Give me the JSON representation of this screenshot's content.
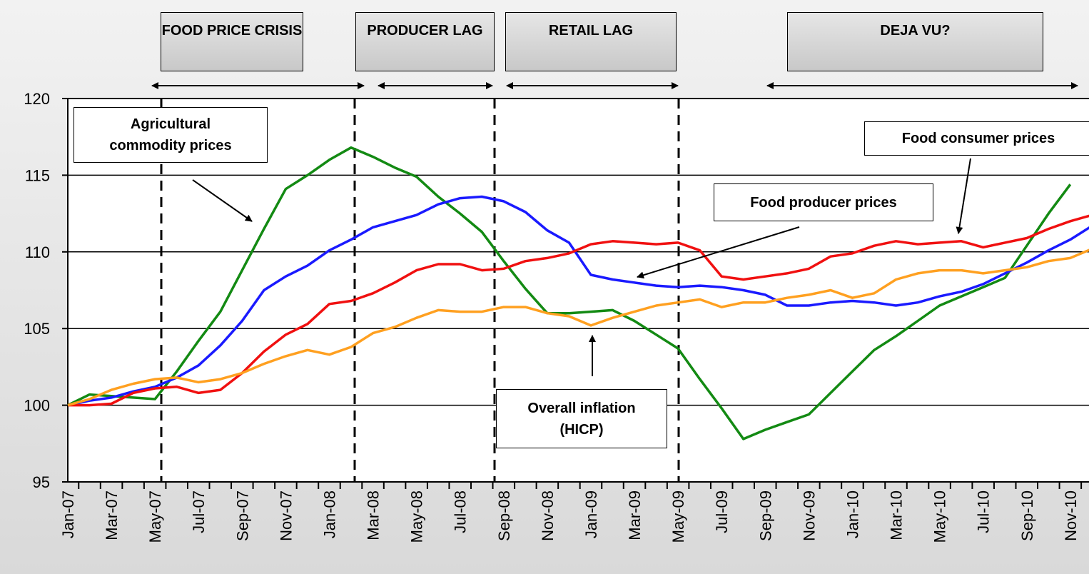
{
  "chart_data": {
    "type": "line",
    "categories": [
      "Jan-07",
      null,
      "Mar-07",
      null,
      "May-07",
      null,
      "Jul-07",
      null,
      "Sep-07",
      null,
      "Nov-07",
      null,
      "Jan-08",
      null,
      "Mar-08",
      null,
      "May-08",
      null,
      "Jul-08",
      null,
      "Sep-08",
      null,
      "Nov-08",
      null,
      "Jan-09",
      null,
      "Mar-09",
      null,
      "May-09",
      null,
      "Jul-09",
      null,
      "Sep-09",
      null,
      "Nov-09",
      null,
      "Jan-10",
      null,
      "Mar-10",
      null,
      "May-10",
      null,
      "Jul-10",
      null,
      "Sep-10",
      null,
      "Nov-10",
      null
    ],
    "series": [
      {
        "name": "Agricultural commodity prices",
        "color": "#138a13",
        "values": [
          100,
          100.7,
          100.6,
          100.5,
          100.4,
          102.2,
          104.2,
          106.1,
          108.8,
          111.5,
          114.1,
          115.0,
          116.0,
          116.8,
          116.2,
          115.5,
          114.9,
          113.6,
          112.5,
          111.3,
          109.4,
          107.6,
          106.0,
          106.0,
          106.1,
          106.2,
          105.5,
          104.6,
          103.7,
          101.7,
          99.8,
          97.8,
          98.4,
          98.9,
          99.4,
          100.8,
          102.2,
          103.6,
          104.5,
          105.5,
          106.5,
          107.1,
          107.7,
          108.3,
          110.4,
          112.5,
          114.4,
          null
        ]
      },
      {
        "name": "Food producer prices",
        "color": "#1a1aff",
        "values": [
          100,
          100.3,
          100.5,
          100.9,
          101.2,
          101.8,
          102.6,
          103.9,
          105.5,
          107.5,
          108.4,
          109.1,
          110.1,
          110.8,
          111.6,
          112.0,
          112.4,
          113.1,
          113.5,
          113.6,
          113.3,
          112.6,
          111.4,
          110.6,
          108.5,
          108.2,
          108.0,
          107.8,
          107.7,
          107.8,
          107.7,
          107.5,
          107.2,
          106.5,
          106.5,
          106.7,
          106.8,
          106.7,
          106.5,
          106.7,
          107.1,
          107.4,
          107.9,
          108.6,
          109.3,
          110.1,
          110.8,
          111.7
        ]
      },
      {
        "name": "Food consumer prices",
        "color": "#f01010",
        "values": [
          100,
          100,
          100.1,
          100.8,
          101.1,
          101.2,
          100.8,
          101.0,
          102.1,
          103.5,
          104.6,
          105.3,
          106.6,
          106.8,
          107.3,
          108.0,
          108.8,
          109.2,
          109.2,
          108.8,
          108.9,
          109.4,
          109.6,
          109.9,
          110.5,
          110.7,
          110.6,
          110.5,
          110.6,
          110.1,
          108.4,
          108.2,
          108.4,
          108.6,
          108.9,
          109.7,
          109.9,
          110.4,
          110.7,
          110.5,
          110.6,
          110.7,
          110.3,
          110.6,
          110.9,
          111.5,
          112.0,
          112.4
        ]
      },
      {
        "name": "Overall inflation (HICP)",
        "color": "#ffa020",
        "values": [
          100,
          100.4,
          101.0,
          101.4,
          101.7,
          101.8,
          101.5,
          101.7,
          102.1,
          102.7,
          103.2,
          103.6,
          103.3,
          103.8,
          104.7,
          105.1,
          105.7,
          106.2,
          106.1,
          106.1,
          106.4,
          106.4,
          106.0,
          105.8,
          105.2,
          105.7,
          106.1,
          106.5,
          106.7,
          106.9,
          106.4,
          106.7,
          106.7,
          107.0,
          107.2,
          107.5,
          107.0,
          107.3,
          108.2,
          108.6,
          108.8,
          108.8,
          108.6,
          108.8,
          109.0,
          109.4,
          109.6,
          110.2
        ]
      }
    ],
    "annotations": [
      "FOOD PRICE CRISIS",
      "PRODUCER LAG",
      "RETAIL LAG",
      "DEJA VU?"
    ],
    "ylim": [
      95,
      120
    ],
    "yticks": [
      95,
      100,
      105,
      110,
      115,
      120
    ],
    "grid": true
  }
}
